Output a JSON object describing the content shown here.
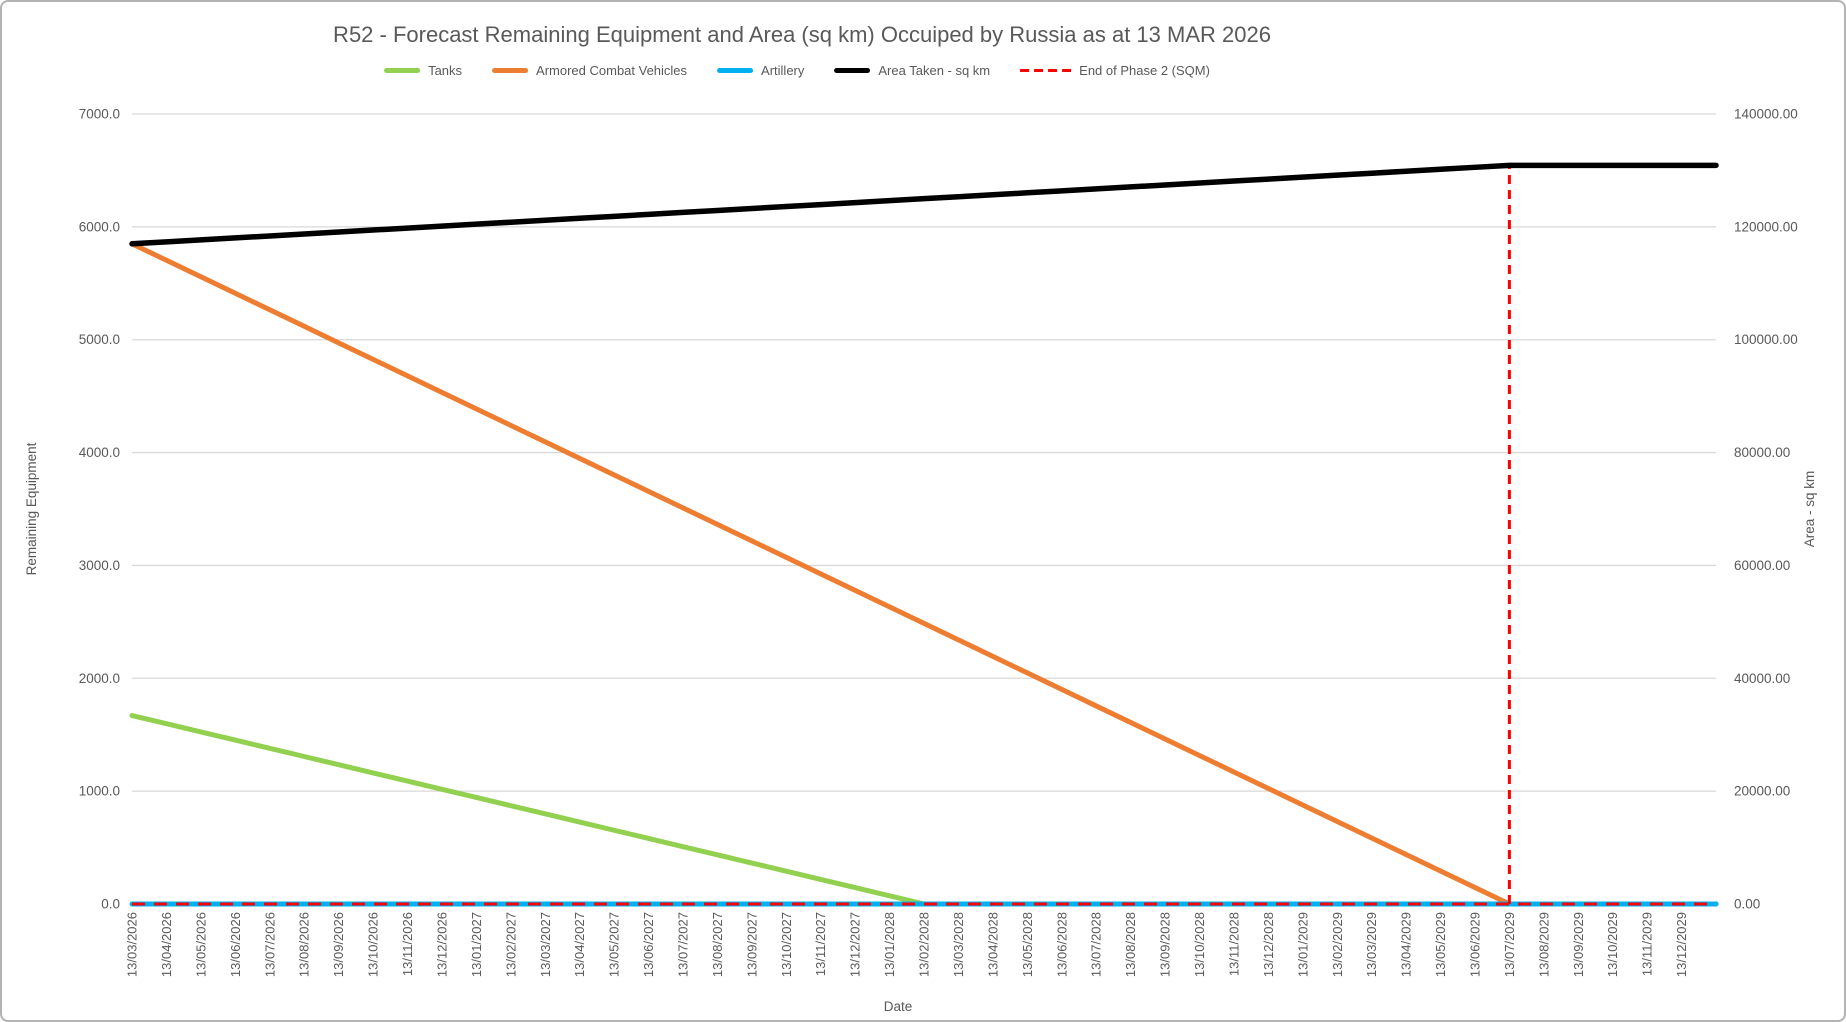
{
  "chart_data": {
    "type": "line",
    "title": "R52 - Forecast Remaining Equipment and Area (sq km) Occuiped by Russia as at 13 MAR 2026",
    "xlabel": "Date",
    "ylabel_left": "Remaining Equipment",
    "ylabel_right": "Area - sq km",
    "grid": "horizontal",
    "legend_position": "top",
    "colors": {
      "text": "#595959",
      "grid": "#D9D9D9",
      "background": "#FFFFFF",
      "border": "#B3B3B3"
    },
    "left_axis": {
      "min": 0,
      "max": 7000,
      "tick_labels": [
        "0.0",
        "1000.0",
        "2000.0",
        "3000.0",
        "4000.0",
        "5000.0",
        "6000.0",
        "7000.0"
      ]
    },
    "right_axis": {
      "min": 0,
      "max": 140000,
      "tick_labels": [
        "0.00",
        "20000.00",
        "40000.00",
        "60000.00",
        "80000.00",
        "100000.00",
        "120000.00",
        "140000.00"
      ]
    },
    "x_labels": [
      "13/03/2026",
      "13/04/2026",
      "13/05/2026",
      "13/06/2026",
      "13/07/2026",
      "13/08/2026",
      "13/09/2026",
      "13/10/2026",
      "13/11/2026",
      "13/12/2026",
      "13/01/2027",
      "13/02/2027",
      "13/03/2027",
      "13/04/2027",
      "13/05/2027",
      "13/06/2027",
      "13/07/2027",
      "13/08/2027",
      "13/09/2027",
      "13/10/2027",
      "13/11/2027",
      "13/12/2027",
      "13/01/2028",
      "13/02/2028",
      "13/03/2028",
      "13/04/2028",
      "13/05/2028",
      "13/06/2028",
      "13/07/2028",
      "13/08/2028",
      "13/09/2028",
      "13/10/2028",
      "13/11/2028",
      "13/12/2028",
      "13/01/2029",
      "13/02/2029",
      "13/03/2029",
      "13/04/2029",
      "13/05/2029",
      "13/06/2029",
      "13/07/2029",
      "13/08/2029",
      "13/09/2029",
      "13/10/2029",
      "13/11/2029",
      "13/12/2029"
    ],
    "series": [
      {
        "name": "Tanks",
        "axis": "left",
        "color": "#92D050",
        "style": "solid",
        "values": [
          1670,
          1597.4,
          1524.8,
          1452.2,
          1379.6,
          1307,
          1234.3,
          1161.7,
          1089.1,
          1016.5,
          943.9,
          871.3,
          798.7,
          726.1,
          653.5,
          580.9,
          508.3,
          435.7,
          363,
          290.4,
          217.8,
          145.2,
          72.6,
          0,
          0,
          0,
          0,
          0,
          0,
          0,
          0,
          0,
          0,
          0,
          0,
          0,
          0,
          0,
          0,
          0,
          0,
          0,
          0,
          0,
          0,
          0
        ]
      },
      {
        "name": "Armored Combat Vehicles",
        "axis": "left",
        "color": "#ED7D31",
        "style": "solid",
        "values": [
          5850,
          5703.8,
          5557.5,
          5411.3,
          5265,
          5118.8,
          4972.5,
          4826.3,
          4680,
          4533.8,
          4387.5,
          4241.3,
          4095,
          3948.8,
          3802.5,
          3656.3,
          3510,
          3363.8,
          3217.5,
          3071.3,
          2925,
          2778.8,
          2632.5,
          2486.3,
          2340,
          2193.8,
          2047.5,
          1901.3,
          1755,
          1608.8,
          1462.5,
          1316.3,
          1170,
          1023.8,
          877.5,
          731.3,
          585,
          438.8,
          292.5,
          146.3,
          0,
          0,
          0,
          0,
          0,
          0
        ]
      },
      {
        "name": "Artillery",
        "axis": "left",
        "color": "#00B0F0",
        "style": "solid",
        "values": [
          0,
          0,
          0,
          0,
          0,
          0,
          0,
          0,
          0,
          0,
          0,
          0,
          0,
          0,
          0,
          0,
          0,
          0,
          0,
          0,
          0,
          0,
          0,
          0,
          0,
          0,
          0,
          0,
          0,
          0,
          0,
          0,
          0,
          0,
          0,
          0,
          0,
          0,
          0,
          0,
          0,
          0,
          0,
          0,
          0,
          0
        ]
      },
      {
        "name": "Area Taken - sq km",
        "axis": "right",
        "color": "#000000",
        "style": "solid",
        "values": [
          117000,
          117348,
          117695,
          118043,
          118390,
          118738,
          119085,
          119433,
          119780,
          120128,
          120475,
          120823,
          121170,
          121518,
          121865,
          122213,
          122560,
          122908,
          123255,
          123603,
          123950,
          124298,
          124645,
          124993,
          125340,
          125688,
          126035,
          126383,
          126730,
          127078,
          127425,
          127773,
          128120,
          128468,
          128815,
          129163,
          129510,
          129858,
          130205,
          130553,
          130900,
          130900,
          130900,
          130900,
          130900,
          130900
        ]
      },
      {
        "name": "End of Phase 2 (SQM)",
        "axis": "right",
        "color": "#FF0000",
        "style": "dashed",
        "baseline_value": 0,
        "spike": {
          "date": "13/07/2029",
          "index": 40,
          "value": 130900
        }
      }
    ]
  }
}
